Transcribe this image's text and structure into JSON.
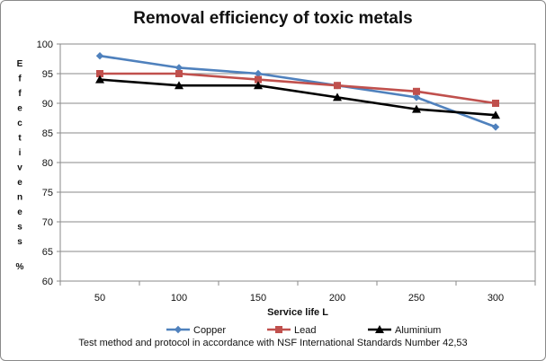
{
  "chart_data": {
    "type": "line",
    "title": "Removal efficiency of toxic metals",
    "xlabel": "Service life L",
    "ylabel": "Effectivenes s %",
    "ylabel_letters": [
      "E",
      "f",
      "f",
      "e",
      "c",
      "t",
      "i",
      "v",
      "e",
      "n",
      "e",
      "s",
      "s",
      "%"
    ],
    "x": [
      "50",
      "100",
      "150",
      "200",
      "250",
      "300"
    ],
    "ylim": [
      60,
      100
    ],
    "yticks": [
      60,
      65,
      70,
      75,
      80,
      85,
      90,
      95,
      100
    ],
    "grid": true,
    "legend_position": "bottom",
    "series": [
      {
        "name": "Copper",
        "values": [
          98,
          96,
          95,
          93,
          91,
          86
        ],
        "color": "#4F81BD",
        "marker": "diamond"
      },
      {
        "name": "Lead",
        "values": [
          95,
          95,
          94,
          93,
          92,
          90
        ],
        "color": "#C0504D",
        "marker": "square"
      },
      {
        "name": "Aluminium",
        "values": [
          94,
          93,
          93,
          91,
          89,
          88
        ],
        "color": "#000000",
        "marker": "triangle"
      }
    ],
    "footnote": "Test method and protocol in accordance with NSF International Standards  Number  42,53"
  }
}
